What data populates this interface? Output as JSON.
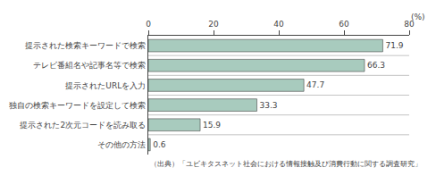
{
  "chart_data": {
    "type": "bar",
    "orientation": "horizontal",
    "categories": [
      "その他の方法",
      "提示された2次元コードを読み取る",
      "独自の検索キーワードを設定して検索",
      "提示されたURLを入力",
      "テレビ番組名や記事名等で検索",
      "提示された検索キーワードで検索"
    ],
    "values": [
      0.6,
      15.9,
      33.3,
      47.7,
      66.3,
      71.9
    ],
    "color": "#a8cbbe",
    "xlim": [
      0,
      80
    ],
    "xticks": [
      0,
      20,
      40,
      60,
      80
    ],
    "xlabel": "(%)",
    "annotations": [
      "（出典）「ユビキタスネット社会における情報接触及び消費行動に関する調査研究」"
    ],
    "data_labels": true,
    "grid": false
  }
}
